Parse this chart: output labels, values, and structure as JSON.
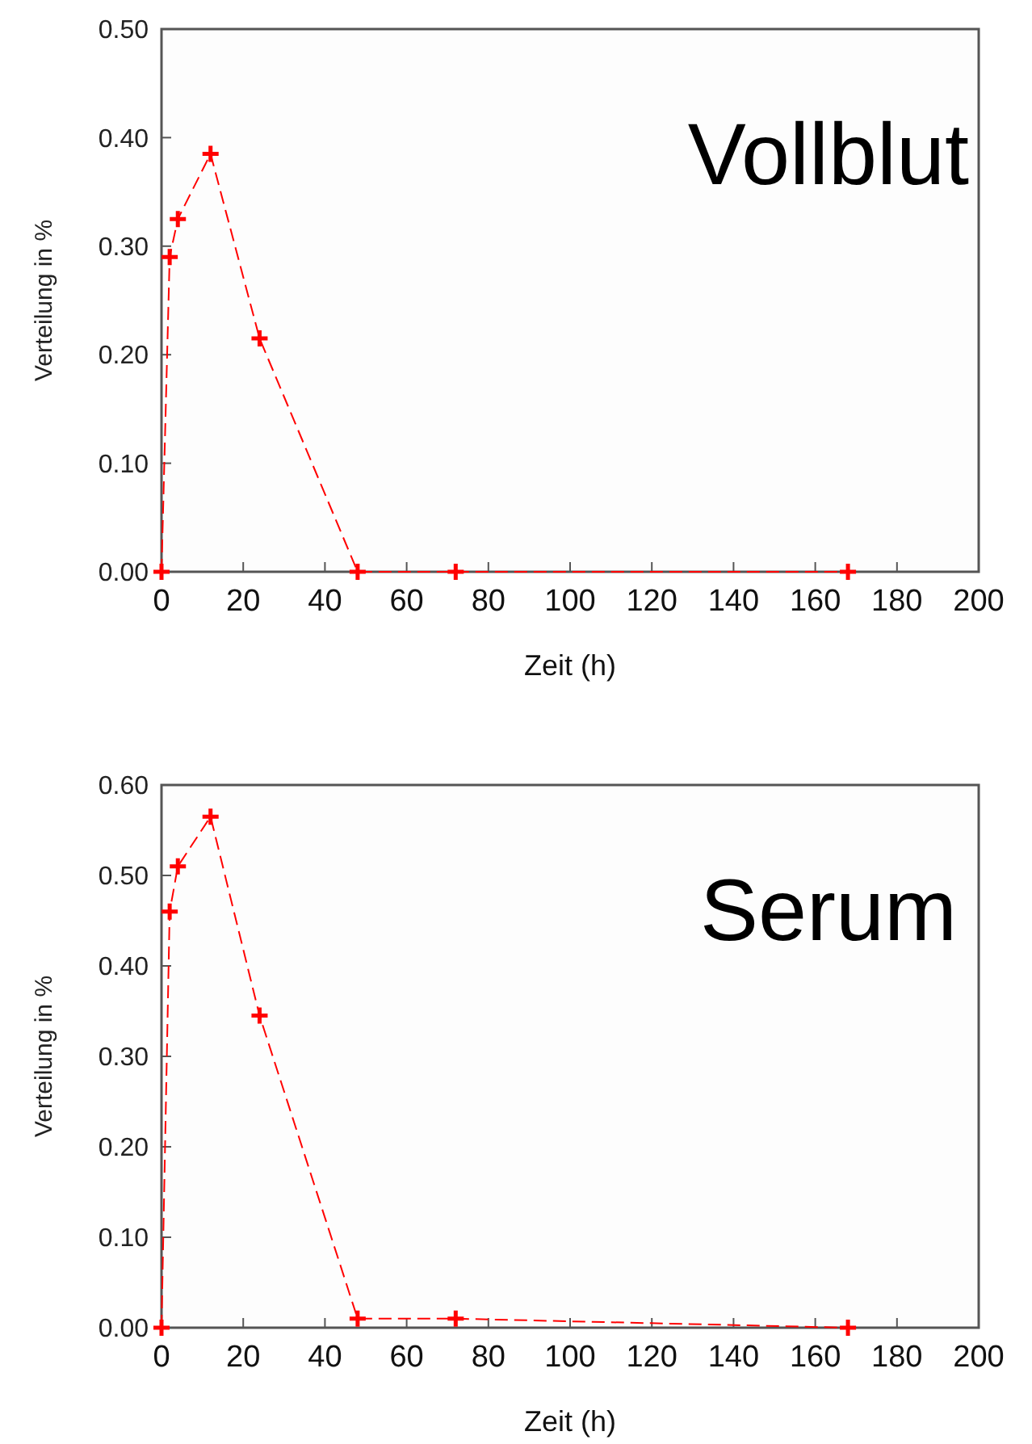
{
  "chart_data": [
    {
      "type": "line",
      "title": "Vollblut",
      "xlabel": "Zeit (h)",
      "ylabel": "Verteilung in %",
      "marker": "cross",
      "line_style": "dashed",
      "grid": false,
      "x": [
        0,
        2,
        4,
        12,
        24,
        48,
        72,
        168
      ],
      "series": [
        {
          "color": "#ff0000",
          "values": [
            0,
            0.29,
            0.325,
            0.385,
            0.215,
            0,
            0,
            0
          ]
        }
      ],
      "xlim": [
        0,
        200
      ],
      "xticks": [
        0,
        20,
        40,
        60,
        80,
        100,
        120,
        140,
        160,
        180,
        200
      ],
      "ylim": [
        0,
        0.5
      ],
      "yticks": [
        {
          "value": 0,
          "label": "0.00"
        },
        {
          "value": 0.1,
          "label": "0.10"
        },
        {
          "value": 0.2,
          "label": "0.20"
        },
        {
          "value": 0.3,
          "label": "0.30"
        },
        {
          "value": 0.4,
          "label": "0.40"
        },
        {
          "value": 0.5,
          "label": "0.50"
        }
      ]
    },
    {
      "type": "line",
      "title": "Serum",
      "xlabel": "Zeit (h)",
      "ylabel": "Verteilung in %",
      "marker": "cross",
      "line_style": "dashed",
      "grid": false,
      "x": [
        0,
        2,
        4,
        12,
        24,
        48,
        72,
        168
      ],
      "series": [
        {
          "color": "#ff0000",
          "values": [
            0,
            0.46,
            0.51,
            0.565,
            0.345,
            0.01,
            0.01,
            0
          ]
        }
      ],
      "xlim": [
        0,
        200
      ],
      "xticks": [
        0,
        20,
        40,
        60,
        80,
        100,
        120,
        140,
        160,
        180,
        200
      ],
      "ylim": [
        0,
        0.6
      ],
      "yticks": [
        {
          "value": 0,
          "label": "0.00"
        },
        {
          "value": 0.1,
          "label": "0.10"
        },
        {
          "value": 0.2,
          "label": "0.20"
        },
        {
          "value": 0.3,
          "label": "0.30"
        },
        {
          "value": 0.4,
          "label": "0.40"
        },
        {
          "value": 0.5,
          "label": "0.50"
        },
        {
          "value": 0.6,
          "label": "0.60"
        }
      ]
    }
  ]
}
